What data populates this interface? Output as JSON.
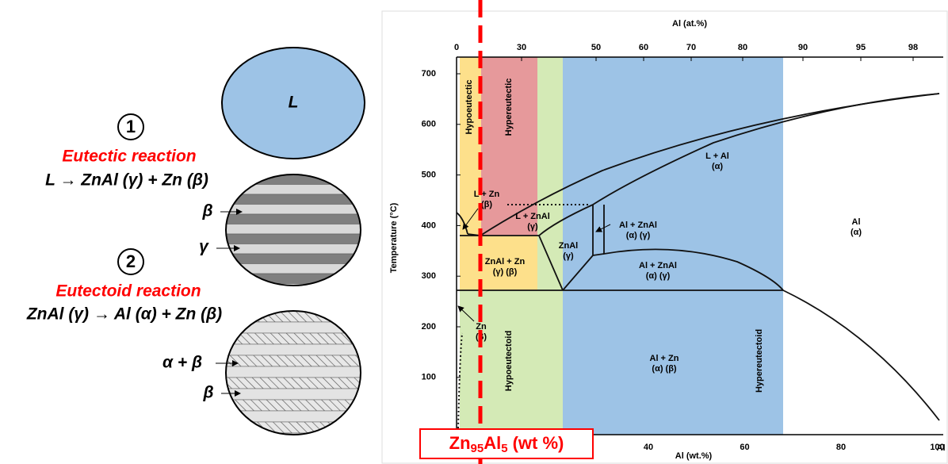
{
  "left": {
    "liquid_label": "L",
    "stage1_number": "1",
    "eutectic_title": "Eutectic reaction",
    "eutectic_equation": "L → ZnAl (γ) + Zn (β)",
    "beta_label_1": "β",
    "gamma_label": "γ",
    "stage2_number": "2",
    "eutectoid_title": "Eutectoid reaction",
    "eutectoid_equation": "ZnAl (γ) → Al (α) + Zn (β)",
    "alpha_beta_label": "α + β",
    "beta_label_2": "β"
  },
  "diagram": {
    "top_axis_title": "Al (at.%)",
    "top_ticks": [
      "0",
      "30",
      "50",
      "60",
      "70",
      "80",
      "90",
      "95",
      "98"
    ],
    "y_axis_title": "Temperature (°C)",
    "y_ticks": [
      "700",
      "600",
      "500",
      "400",
      "300",
      "200",
      "100"
    ],
    "x_axis_title": "Al (wt.%)",
    "x_ticks": [
      "40",
      "60",
      "80",
      "100"
    ],
    "x_axis_corner": "Al",
    "regions": [
      {
        "lines": [
          "Hypoeutectic"
        ]
      },
      {
        "lines": [
          "Hypereutectic"
        ]
      },
      {
        "lines": [
          "L + Zn",
          "(β)"
        ]
      },
      {
        "lines": [
          "L + ZnAl",
          "(γ)"
        ]
      },
      {
        "lines": [
          "L + Al",
          "(α)"
        ]
      },
      {
        "lines": [
          "Al + ZnAl",
          "(α)       (γ)"
        ]
      },
      {
        "lines": [
          "ZnAl",
          "(γ)"
        ]
      },
      {
        "lines": [
          "ZnAl + Zn",
          "(γ)         (β)"
        ]
      },
      {
        "lines": [
          "Al + ZnAl",
          "(α)       (γ)"
        ]
      },
      {
        "lines": [
          "Al",
          "(α)"
        ]
      },
      {
        "lines": [
          "Zn",
          "(β)"
        ]
      },
      {
        "lines": [
          "Hypoeutectoid"
        ]
      },
      {
        "lines": [
          "Hypereutectoid"
        ]
      },
      {
        "lines": [
          "Al + Zn",
          "(α)      (β)"
        ]
      }
    ],
    "composition": {
      "element_1": "Zn",
      "subscript_1": "95",
      "element_2": "Al",
      "subscript_2": "5",
      "unit": "(wt %)"
    }
  }
}
